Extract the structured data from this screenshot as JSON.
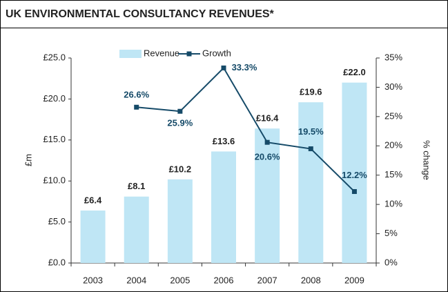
{
  "chart_data": {
    "type": "bar-line",
    "title": "UK ENVIRONMENTAL CONSULTANCY REVENUES*",
    "categories": [
      "2003",
      "2004",
      "2005",
      "2006",
      "2007",
      "2008",
      "2009"
    ],
    "series": [
      {
        "name": "Revenue",
        "type": "bar",
        "color": "#bfe6f5",
        "values": [
          6.4,
          8.1,
          10.2,
          13.6,
          16.4,
          19.6,
          22.0
        ],
        "value_labels": [
          "£6.4",
          "£8.1",
          "£10.2",
          "£13.6",
          "£16.4",
          "£19.6",
          "£22.0"
        ]
      },
      {
        "name": "Growth",
        "type": "line",
        "axis": "y2",
        "color": "#154a68",
        "values": [
          null,
          26.6,
          25.9,
          33.3,
          20.6,
          19.5,
          12.2
        ],
        "value_labels": [
          null,
          "26.6%",
          "25.9%",
          "33.3%",
          "20.6%",
          "19.5%",
          "12.2%"
        ]
      }
    ],
    "ylabel": "£m",
    "y2label": "% change",
    "ylim": [
      0,
      25
    ],
    "yticks": [
      {
        "value": 0,
        "label": "£0.0"
      },
      {
        "value": 5,
        "label": "£5.0"
      },
      {
        "value": 10,
        "label": "£10.0"
      },
      {
        "value": 15,
        "label": "£15.0"
      },
      {
        "value": 20,
        "label": "£20.0"
      },
      {
        "value": 25,
        "label": "£25.0"
      }
    ],
    "y2lim": [
      0,
      35
    ],
    "y2ticks": [
      {
        "value": 0,
        "label": "0%"
      },
      {
        "value": 5,
        "label": "5%"
      },
      {
        "value": 10,
        "label": "10%"
      },
      {
        "value": 15,
        "label": "15%"
      },
      {
        "value": 20,
        "label": "20%"
      },
      {
        "value": 25,
        "label": "25%"
      },
      {
        "value": 30,
        "label": "30%"
      },
      {
        "value": 35,
        "label": "35%"
      }
    ],
    "legend": "top"
  }
}
